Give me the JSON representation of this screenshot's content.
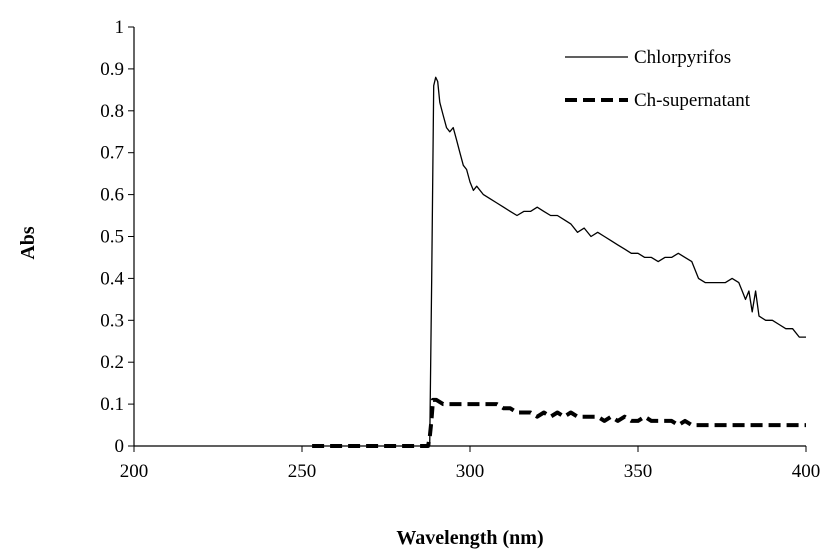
{
  "chart_data": {
    "type": "line",
    "title": "",
    "xlabel": "Wavelength (nm)",
    "ylabel": "Abs",
    "xlim": [
      200,
      400
    ],
    "ylim": [
      0,
      1
    ],
    "xticks": [
      200,
      250,
      300,
      350,
      400
    ],
    "yticks": [
      0,
      0.1,
      0.2,
      0.3,
      0.4,
      0.5,
      0.6,
      0.7,
      0.8,
      0.9,
      1
    ],
    "ytick_labels": [
      "0",
      "0.1",
      "0.2",
      "0.3",
      "0.4",
      "0.5",
      "0.6",
      "0.7",
      "0.8",
      "0.9",
      "1"
    ],
    "grid": false,
    "legend_position": "top-right",
    "series": [
      {
        "name": "Chlorpyrifos",
        "style": "solid",
        "color": "#000000",
        "x": [
          288,
          288.6,
          289.2,
          289.8,
          290.4,
          291,
          292,
          293,
          294,
          295,
          296,
          297,
          298,
          299,
          300,
          301,
          302,
          304,
          306,
          308,
          310,
          312,
          314,
          316,
          318,
          320,
          322,
          324,
          326,
          328,
          330,
          332,
          334,
          336,
          338,
          340,
          342,
          344,
          346,
          348,
          350,
          352,
          354,
          356,
          358,
          360,
          362,
          364,
          366,
          368,
          370,
          372,
          374,
          376,
          378,
          380,
          381,
          382,
          383,
          384,
          385,
          386,
          388,
          390,
          392,
          394,
          396,
          398,
          400
        ],
        "y": [
          0,
          0.4,
          0.86,
          0.88,
          0.87,
          0.82,
          0.79,
          0.76,
          0.75,
          0.76,
          0.73,
          0.7,
          0.67,
          0.66,
          0.63,
          0.61,
          0.62,
          0.6,
          0.59,
          0.58,
          0.57,
          0.56,
          0.55,
          0.56,
          0.56,
          0.57,
          0.56,
          0.55,
          0.55,
          0.54,
          0.53,
          0.51,
          0.52,
          0.5,
          0.51,
          0.5,
          0.49,
          0.48,
          0.47,
          0.46,
          0.46,
          0.45,
          0.45,
          0.44,
          0.45,
          0.45,
          0.46,
          0.45,
          0.44,
          0.4,
          0.39,
          0.39,
          0.39,
          0.39,
          0.4,
          0.39,
          0.37,
          0.35,
          0.37,
          0.32,
          0.37,
          0.31,
          0.3,
          0.3,
          0.29,
          0.28,
          0.28,
          0.26,
          0.26
        ]
      },
      {
        "name": "Ch-supernatant",
        "style": "dashed",
        "color": "#000000",
        "x": [
          253,
          260,
          270,
          280,
          287.5,
          288,
          288.5,
          289,
          290,
          292,
          294,
          296,
          298,
          300,
          302,
          304,
          306,
          308,
          310,
          312,
          314,
          316,
          318,
          320,
          322,
          324,
          326,
          328,
          330,
          332,
          334,
          336,
          338,
          340,
          342,
          344,
          346,
          348,
          350,
          352,
          354,
          356,
          358,
          360,
          362,
          364,
          366,
          368,
          370,
          372,
          374,
          376,
          378,
          380,
          382,
          384,
          386,
          388,
          390,
          392,
          394,
          396,
          398,
          400
        ],
        "y": [
          0,
          0,
          0,
          0,
          0,
          0.02,
          0.06,
          0.11,
          0.11,
          0.1,
          0.1,
          0.1,
          0.1,
          0.1,
          0.1,
          0.1,
          0.1,
          0.1,
          0.09,
          0.09,
          0.08,
          0.08,
          0.08,
          0.07,
          0.08,
          0.07,
          0.08,
          0.07,
          0.08,
          0.07,
          0.07,
          0.07,
          0.07,
          0.06,
          0.07,
          0.06,
          0.07,
          0.06,
          0.06,
          0.07,
          0.06,
          0.06,
          0.06,
          0.06,
          0.05,
          0.06,
          0.05,
          0.05,
          0.05,
          0.05,
          0.05,
          0.05,
          0.05,
          0.05,
          0.05,
          0.05,
          0.05,
          0.05,
          0.05,
          0.05,
          0.05,
          0.05,
          0.05,
          0.05
        ]
      }
    ]
  }
}
